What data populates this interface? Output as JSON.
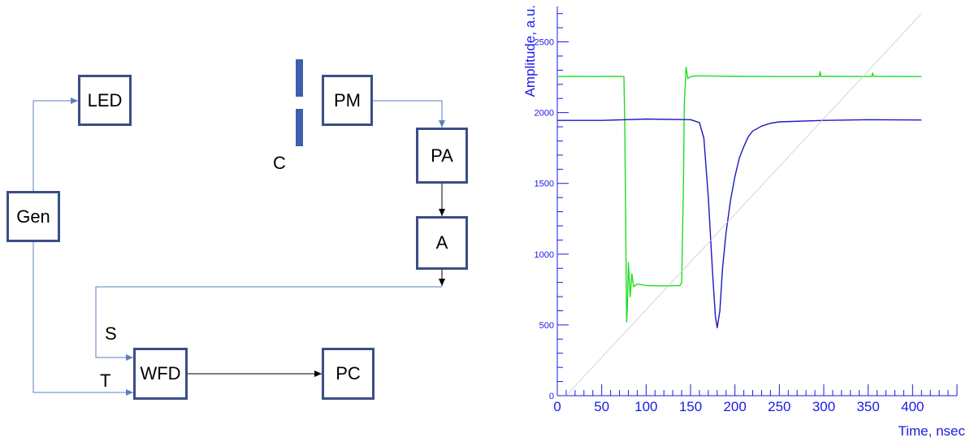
{
  "diagram": {
    "blocks": {
      "led": "LED",
      "gen": "Gen",
      "pm": "PM",
      "pa": "PA",
      "a": "A",
      "wfd": "WFD",
      "pc": "PC"
    },
    "labels": {
      "c": "C",
      "s": "S",
      "t": "T"
    },
    "colors": {
      "box_border": "#3b4e86",
      "wire": "#5b7fc0",
      "collimator": "#3f5fae"
    }
  },
  "chart_data": {
    "type": "line",
    "title": "",
    "xlabel": "Time, nsec",
    "ylabel": "Amplitude, a.u.",
    "xlim": [
      0,
      450
    ],
    "ylim": [
      0,
      2750
    ],
    "x_ticks": [
      0,
      50,
      100,
      150,
      200,
      250,
      300,
      350,
      400
    ],
    "y_ticks": [
      500,
      1000,
      1500,
      2000,
      2500
    ],
    "grid": false,
    "series": [
      {
        "color": "#22dd22",
        "x": [
          0,
          20,
          40,
          60,
          75,
          76,
          77,
          78,
          79,
          80,
          82,
          84,
          86,
          90,
          100,
          120,
          138,
          140,
          142,
          143,
          145,
          147,
          150,
          160,
          200,
          250,
          295,
          296,
          297,
          300,
          350,
          354,
          355,
          356,
          400,
          410
        ],
        "y": [
          2255,
          2256,
          2255,
          2256,
          2255,
          1900,
          1200,
          520,
          650,
          940,
          700,
          860,
          770,
          790,
          778,
          776,
          778,
          800,
          1500,
          2050,
          2320,
          2240,
          2255,
          2260,
          2256,
          2255,
          2255,
          2290,
          2255,
          2256,
          2255,
          2256,
          2280,
          2256,
          2255,
          2255
        ]
      },
      {
        "color": "#1a1abf",
        "x": [
          0,
          50,
          100,
          150,
          160,
          165,
          170,
          175,
          178,
          180,
          183,
          186,
          190,
          195,
          200,
          205,
          210,
          215,
          220,
          230,
          240,
          250,
          300,
          350,
          410
        ],
        "y": [
          1945,
          1945,
          1955,
          1950,
          1930,
          1820,
          1400,
          850,
          560,
          480,
          600,
          900,
          1150,
          1380,
          1550,
          1680,
          1760,
          1830,
          1870,
          1905,
          1925,
          1935,
          1945,
          1950,
          1948
        ]
      },
      {
        "color": "#cccccc",
        "x": [
          10,
          410
        ],
        "y": [
          0,
          2700
        ]
      }
    ]
  }
}
